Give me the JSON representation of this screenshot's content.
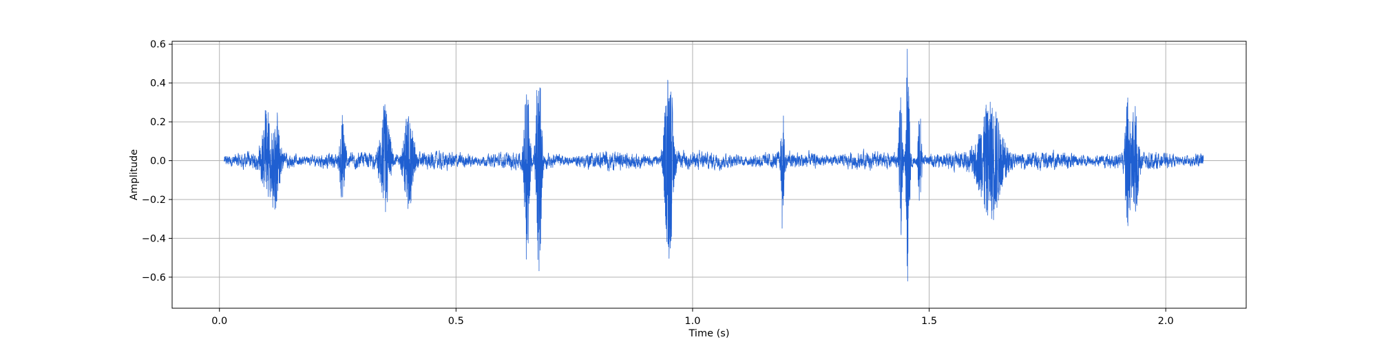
{
  "chart_data": {
    "type": "line",
    "title": "",
    "xlabel": "Time (s)",
    "ylabel": "Amplitude",
    "xlim": [
      -0.1,
      2.17
    ],
    "ylim": [
      -0.76,
      0.615
    ],
    "xticks": [
      0.0,
      0.5,
      1.0,
      1.5,
      2.0
    ],
    "xtick_labels": [
      "0.0",
      "0.5",
      "1.0",
      "1.5",
      "2.0"
    ],
    "yticks": [
      -0.6,
      -0.4,
      -0.2,
      0.0,
      0.2,
      0.4,
      0.6
    ],
    "ytick_labels": [
      "−0.6",
      "−0.4",
      "−0.2",
      "0.0",
      "0.2",
      "0.4",
      "0.6"
    ],
    "grid": true,
    "line_color": "#1f5fd1",
    "sample_rate_hz": 4000,
    "series": [
      {
        "name": "",
        "duration_s": 2.07,
        "x_start": 0.01,
        "noise_amplitude": 0.035,
        "bursts": [
          {
            "t": 0.1,
            "amp": 0.25,
            "width": 0.012
          },
          {
            "t": 0.12,
            "amp": 0.24,
            "width": 0.01
          },
          {
            "t": 0.26,
            "amp": 0.22,
            "width": 0.006
          },
          {
            "t": 0.35,
            "amp": 0.28,
            "width": 0.012
          },
          {
            "t": 0.4,
            "amp": 0.25,
            "width": 0.012
          },
          {
            "t": 0.65,
            "amp": 0.5,
            "width": 0.006
          },
          {
            "t": 0.675,
            "amp": 0.62,
            "width": 0.006
          },
          {
            "t": 0.95,
            "amp": 0.52,
            "width": 0.01
          },
          {
            "t": 1.19,
            "amp": 0.32,
            "width": 0.004
          },
          {
            "t": 1.44,
            "amp": 0.36,
            "width": 0.004
          },
          {
            "t": 1.455,
            "amp": 0.68,
            "width": 0.004
          },
          {
            "t": 1.48,
            "amp": 0.3,
            "width": 0.004
          },
          {
            "t": 1.63,
            "amp": 0.3,
            "width": 0.03
          },
          {
            "t": 1.92,
            "amp": 0.4,
            "width": 0.006
          },
          {
            "t": 1.935,
            "amp": 0.32,
            "width": 0.008
          }
        ]
      }
    ]
  }
}
